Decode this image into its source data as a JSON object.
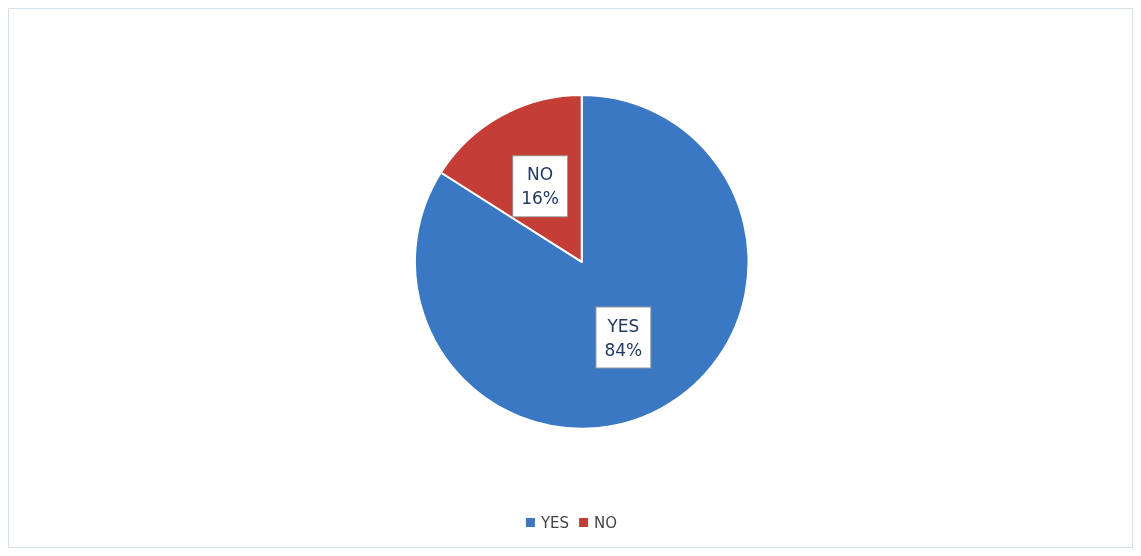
{
  "chart_data": {
    "type": "pie",
    "categories": [
      "YES",
      "NO"
    ],
    "values": [
      84,
      16
    ],
    "colors": [
      "#3a78c4",
      "#c43d36"
    ],
    "value_labels": [
      "84%",
      "16%"
    ],
    "legend": "bottom"
  }
}
